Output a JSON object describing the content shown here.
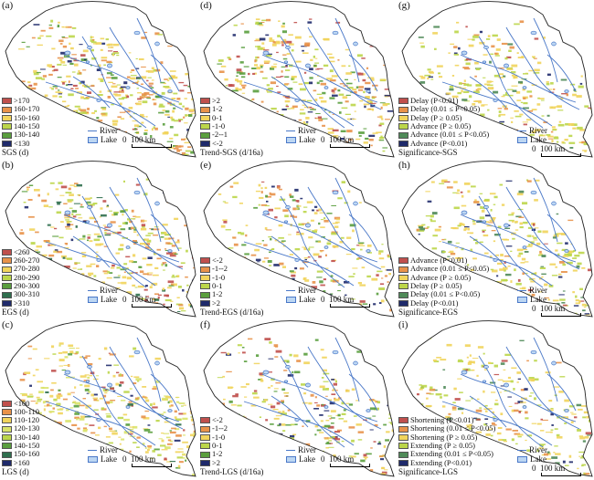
{
  "features": {
    "river": "River",
    "lake": "Lake"
  },
  "scale": {
    "zero": "0",
    "label": "100 km"
  },
  "panels": [
    {
      "id": "a",
      "label": "(a)",
      "title": "SGS (d)",
      "type": "value",
      "legend": [
        {
          "label": ">170",
          "color": "#c0504d"
        },
        {
          "label": "160-170",
          "color": "#e8924a"
        },
        {
          "label": "150-160",
          "color": "#f1d45c"
        },
        {
          "label": "140-150",
          "color": "#bcd64a"
        },
        {
          "label": "130-140",
          "color": "#5a9e3e"
        },
        {
          "label": "<130",
          "color": "#1f2a6b"
        }
      ]
    },
    {
      "id": "d",
      "label": "(d)",
      "title": "Trend-SGS (d/16a)",
      "type": "trend",
      "legend": [
        {
          "label": ">2",
          "color": "#c0504d"
        },
        {
          "label": "1-2",
          "color": "#e8924a"
        },
        {
          "label": "0-1",
          "color": "#f1d45c"
        },
        {
          "label": "-1-0",
          "color": "#bcd64a"
        },
        {
          "label": "-2--1",
          "color": "#5a9e3e"
        },
        {
          "label": "<-2",
          "color": "#1f2a6b"
        }
      ]
    },
    {
      "id": "g",
      "label": "(g)",
      "title": "Significance-SGS",
      "type": "sig",
      "legend": [
        {
          "label": "Delay (P<0.01)",
          "color": "#c0504d"
        },
        {
          "label": "Delay (0.01 ≤ P<0.05)",
          "color": "#e8924a"
        },
        {
          "label": "Delay (P ≥ 0.05)",
          "color": "#f1d45c"
        },
        {
          "label": "Advance (P ≥ 0.05)",
          "color": "#bcd64a"
        },
        {
          "label": "Advance (0.01 ≤ P<0.05)",
          "color": "#4f8a58"
        },
        {
          "label": "Advance (P<0.01)",
          "color": "#1f2a6b"
        }
      ]
    },
    {
      "id": "b",
      "label": "(b)",
      "title": "EGS (d)",
      "type": "value",
      "legend": [
        {
          "label": "<260",
          "color": "#c0504d"
        },
        {
          "label": "260-270",
          "color": "#e8924a"
        },
        {
          "label": "270-280",
          "color": "#f1d45c"
        },
        {
          "label": "280-290",
          "color": "#bcd64a"
        },
        {
          "label": "290-300",
          "color": "#5a9e3e"
        },
        {
          "label": "300-310",
          "color": "#2f6f4e"
        },
        {
          "label": ">310",
          "color": "#1f2a6b"
        }
      ]
    },
    {
      "id": "e",
      "label": "(e)",
      "title": "Trend-EGS (d/16a)",
      "type": "trend",
      "legend": [
        {
          "label": "<-2",
          "color": "#c0504d"
        },
        {
          "label": "-1--2",
          "color": "#e8924a"
        },
        {
          "label": "-1-0",
          "color": "#f1d45c"
        },
        {
          "label": "0-1",
          "color": "#bcd64a"
        },
        {
          "label": "1-2",
          "color": "#5a9e3e"
        },
        {
          "label": ">2",
          "color": "#1f2a6b"
        }
      ]
    },
    {
      "id": "h",
      "label": "(h)",
      "title": "Significance-EGS",
      "type": "sig",
      "legend": [
        {
          "label": "Advance (P<0.01)",
          "color": "#c0504d"
        },
        {
          "label": "Advance (0.01 ≤ P<0.05)",
          "color": "#e8924a"
        },
        {
          "label": "Advance (P ≥ 0.05)",
          "color": "#f1d45c"
        },
        {
          "label": "Delay (P ≥ 0.05)",
          "color": "#bcd64a"
        },
        {
          "label": "Delay (0.01 ≤ P<0.05)",
          "color": "#4f8a58"
        },
        {
          "label": "Delay (P<0.01)",
          "color": "#1f2a6b"
        }
      ]
    },
    {
      "id": "c",
      "label": "(c)",
      "title": "LGS (d)",
      "type": "value",
      "legend": [
        {
          "label": "<100",
          "color": "#c0504d"
        },
        {
          "label": "100-110",
          "color": "#e8924a"
        },
        {
          "label": "110-120",
          "color": "#f1d45c"
        },
        {
          "label": "120-130",
          "color": "#d9e36a"
        },
        {
          "label": "130-140",
          "color": "#bcd64a"
        },
        {
          "label": "140-150",
          "color": "#5a9e3e"
        },
        {
          "label": "150-160",
          "color": "#2f6f4e"
        },
        {
          "label": ">160",
          "color": "#1f2a6b"
        }
      ]
    },
    {
      "id": "f",
      "label": "(f)",
      "title": "Trend-LGS (d/16a)",
      "type": "trend",
      "legend": [
        {
          "label": "<-2",
          "color": "#c0504d"
        },
        {
          "label": "-1--2",
          "color": "#e8924a"
        },
        {
          "label": "-1-0",
          "color": "#f1d45c"
        },
        {
          "label": "0-1",
          "color": "#bcd64a"
        },
        {
          "label": "1-2",
          "color": "#5a9e3e"
        },
        {
          "label": ">2",
          "color": "#1f2a6b"
        }
      ]
    },
    {
      "id": "i",
      "label": "(i)",
      "title": "Significance-LGS",
      "type": "sig",
      "legend": [
        {
          "label": "Shortening (P<0.01)",
          "color": "#c0504d"
        },
        {
          "label": "Shortening (0.01 ≤ P<0.05)",
          "color": "#e8924a"
        },
        {
          "label": "Shortening (P ≥ 0.05)",
          "color": "#f1d45c"
        },
        {
          "label": "Extending (P ≥ 0.05)",
          "color": "#bcd64a"
        },
        {
          "label": "Extending (0.01 ≤ P<0.05)",
          "color": "#4f8a58"
        },
        {
          "label": "Extending (P<0.01)",
          "color": "#1f2a6b"
        }
      ]
    }
  ]
}
